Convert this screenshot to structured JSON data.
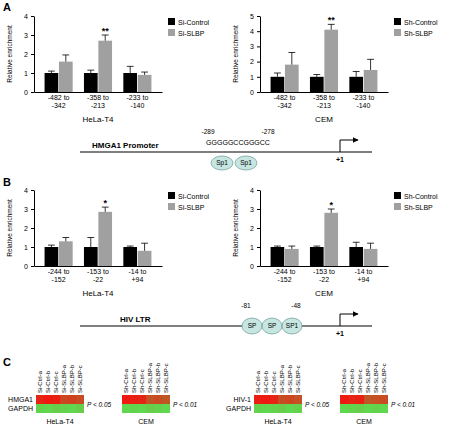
{
  "panels": [
    "A",
    "B",
    "C"
  ],
  "chart_data": [
    {
      "type": "bar",
      "xlabel": "HeLa-T4",
      "ylabel": "Relative enrichment",
      "categories": [
        "-482 to -342",
        "-358 to -213",
        "-233 to -140"
      ],
      "series": [
        {
          "name": "Si-Control",
          "color": "#000000",
          "values": [
            1,
            1,
            1
          ],
          "errors": [
            0.1,
            0.15,
            0.35
          ],
          "annotations": [
            null,
            null,
            null
          ]
        },
        {
          "name": "Si-SLBP",
          "color": "#a0a0a0",
          "values": [
            1.6,
            2.7,
            0.9
          ],
          "errors": [
            0.35,
            0.3,
            0.15
          ],
          "annotations": [
            null,
            "**",
            null
          ]
        }
      ],
      "ylim": [
        0,
        4
      ],
      "yticks": [
        0,
        1,
        2,
        3,
        4
      ],
      "legend": "right"
    },
    {
      "type": "bar",
      "xlabel": "CEM",
      "ylabel": "Relative enrichment",
      "categories": [
        "-482 to -342",
        "-358 to -213",
        "-233 to -140"
      ],
      "series": [
        {
          "name": "Sh-Control",
          "color": "#000000",
          "values": [
            1,
            1,
            1
          ],
          "errors": [
            0.25,
            0.15,
            0.35
          ],
          "annotations": [
            null,
            null,
            null
          ]
        },
        {
          "name": "Sh-SLBP",
          "color": "#a0a0a0",
          "values": [
            1.8,
            4.1,
            1.45
          ],
          "errors": [
            0.8,
            0.35,
            0.7
          ],
          "annotations": [
            null,
            "**",
            null
          ]
        }
      ],
      "ylim": [
        0,
        5
      ],
      "yticks": [
        0,
        1,
        2,
        3,
        4,
        5
      ],
      "legend": "right"
    },
    {
      "type": "bar",
      "xlabel": "HeLa-T4",
      "ylabel": "Relative enrichment",
      "categories": [
        "-244 to -152",
        "-153 to -22",
        "-14 to +94"
      ],
      "series": [
        {
          "name": "Si-Control",
          "color": "#000000",
          "values": [
            1,
            1,
            1
          ],
          "errors": [
            0.1,
            0.5,
            0.05
          ],
          "annotations": [
            null,
            null,
            null
          ]
        },
        {
          "name": "Si-SLBP",
          "color": "#a0a0a0",
          "values": [
            1.3,
            2.85,
            0.8
          ],
          "errors": [
            0.2,
            0.25,
            0.4
          ],
          "annotations": [
            null,
            "*",
            null
          ]
        }
      ],
      "ylim": [
        0,
        4
      ],
      "yticks": [
        0,
        1,
        2,
        3,
        4
      ],
      "legend": "right"
    },
    {
      "type": "bar",
      "xlabel": "CEM",
      "ylabel": "Relative enrichment",
      "categories": [
        "-244 to -152",
        "-153 to -22",
        "-14 to +94"
      ],
      "series": [
        {
          "name": "Sh-Control",
          "color": "#000000",
          "values": [
            1,
            1,
            1
          ],
          "errors": [
            0.05,
            0.05,
            0.25
          ],
          "annotations": [
            null,
            null,
            null
          ]
        },
        {
          "name": "Sh-SLBP",
          "color": "#a0a0a0",
          "values": [
            0.9,
            2.8,
            0.9
          ],
          "errors": [
            0.15,
            0.2,
            0.3
          ],
          "annotations": [
            null,
            "*",
            null
          ]
        }
      ],
      "ylim": [
        0,
        4
      ],
      "yticks": [
        0,
        1,
        2,
        3,
        4
      ],
      "legend": "right"
    },
    {
      "type": "heatmap",
      "xlabel": "HeLa-T4",
      "annotation": "P < 0.05",
      "columns": [
        "Si-Ctrl-a",
        "Si-Ctrl-b",
        "Si-Ctrl-c",
        "Si-SLBP-a",
        "Si-SLBP-b",
        "Si-SLBP-c"
      ],
      "rows": [
        "HMGA1",
        "GAPDH"
      ],
      "cells": [
        [
          0.9,
          1,
          0.95,
          0.55,
          0.6,
          0.5
        ],
        [
          -0.85,
          -0.9,
          -0.8,
          -0.85,
          -0.9,
          -0.8
        ]
      ]
    },
    {
      "type": "heatmap",
      "xlabel": "CEM",
      "annotation": "P < 0.01",
      "columns": [
        "Sh-Ctrl-a",
        "Sh-Ctrl-b",
        "Sh-Ctrl-c",
        "Sh-SLBP-a",
        "Sh-SLBP-b",
        "Sh-SLBP-c"
      ],
      "cells": [
        [
          1,
          0.95,
          0.9,
          0.45,
          0.5,
          0.4
        ],
        [
          -0.9,
          -0.85,
          -0.9,
          -0.8,
          -0.85,
          -0.9
        ]
      ]
    },
    {
      "type": "heatmap",
      "xlabel": "HeLa-T4",
      "annotation": "P < 0.05",
      "columns": [
        "Si-Ctrl-a",
        "Si-Ctrl-b",
        "Si-Ctrl-c",
        "Si-SLBP-a",
        "Si-SLBP-b",
        "Si-SLBP-c"
      ],
      "rows": [
        "HIV-1",
        "GAPDH"
      ],
      "cells": [
        [
          0.95,
          1,
          0.9,
          0.5,
          0.55,
          0.45
        ],
        [
          -0.85,
          -0.9,
          -0.85,
          -0.8,
          -0.9,
          -0.85
        ]
      ]
    },
    {
      "type": "heatmap",
      "xlabel": "CEM",
      "annotation": "P < 0.01",
      "columns": [
        "Sh-Ctrl-a",
        "Sh-Ctrl-b",
        "Sh-Ctrl-c",
        "Sh-SLBP-a",
        "Sh-SLBP-b",
        "Sh-SLBP-c"
      ],
      "cells": [
        [
          1,
          0.9,
          0.95,
          0.4,
          0.45,
          0.5
        ],
        [
          -0.9,
          -0.85,
          -0.8,
          -0.9,
          -0.85,
          -0.9
        ]
      ]
    }
  ],
  "diagrams": {
    "hmga1": {
      "label": "HMGA1 Promoter",
      "positions": [
        "-289",
        "-278"
      ],
      "sequence": "GGGGGCCGGGCC",
      "factors": [
        "Sp1",
        "Sp1"
      ],
      "tss": "+1"
    },
    "hiv": {
      "label": "HIV LTR",
      "positions": [
        "-81",
        "-48"
      ],
      "factors": [
        "SP",
        "SP",
        "SP1"
      ],
      "tss": "+1"
    }
  }
}
